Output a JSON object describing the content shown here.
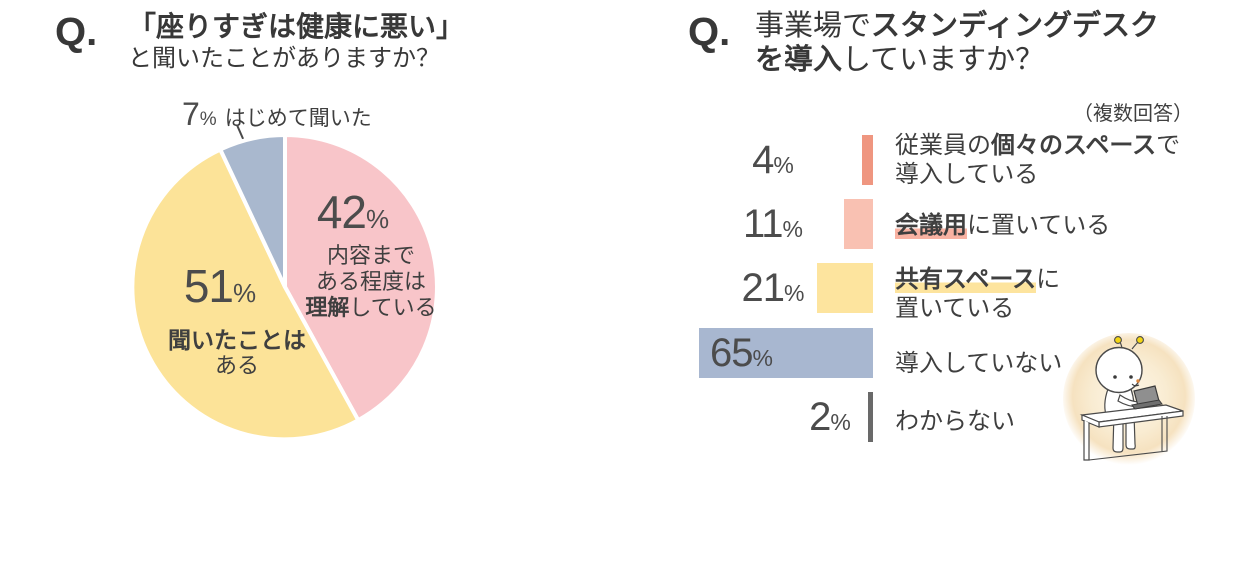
{
  "pct": "%",
  "colors": {
    "text_dark": "#383838",
    "text_label": "#3f3f3f",
    "number_gray": "#4c4c4c",
    "pie_pink": "#f8c5c9",
    "pie_yellow": "#fce398",
    "pie_blue": "#a9b8ce",
    "bar_salmon": "#ef9680",
    "bar_pink": "#f9c1b2",
    "bar_yellow": "#fde49e",
    "bar_blue": "#a8b7d0",
    "bar_darkgray": "#696969",
    "highlight_pink": "#f9b2a2",
    "highlight_yellow": "#fde49e",
    "white_dash": "#ffffff"
  },
  "icons": {
    "mascot": "standing-desk-character"
  },
  "left": {
    "q_mark": "Q.",
    "title_line1": "「座りすぎは健康に悪い」",
    "title_line2": "と聞いたことがありますか？",
    "callout_label": "はじめて聞いた",
    "slice_pink_desc": [
      [
        {
          "t": "内容まで"
        }
      ],
      [
        {
          "t": "ある程度は"
        }
      ],
      [
        {
          "t": "理解",
          "b": true
        },
        {
          "t": "している"
        }
      ]
    ],
    "slice_yellow_desc_bold": "聞いたことは",
    "slice_yellow_desc_rest": "ある"
  },
  "right": {
    "q_mark": "Q.",
    "title_line1": [
      {
        "t": "事業場で"
      },
      {
        "t": "スタンディングデスク",
        "b": true
      }
    ],
    "title_line2": [
      {
        "t": "を導入",
        "b": true
      },
      {
        "t": "していますか？"
      }
    ],
    "note": "（複数回答）",
    "rows": [
      {
        "label_lines": [
          [
            {
              "t": "従業員の"
            },
            {
              "t": "個々のスペース",
              "b": true
            },
            {
              "t": "で"
            }
          ],
          [
            {
              "t": "導入している"
            }
          ]
        ]
      },
      {
        "label_lines": [
          [
            {
              "t": "会議用",
              "b": true,
              "hl": "pink"
            },
            {
              "t": "に置いている"
            }
          ]
        ]
      },
      {
        "label_lines": [
          [
            {
              "t": "共有スペース",
              "b": true,
              "hl": "yellow"
            },
            {
              "t": "に"
            }
          ],
          [
            {
              "t": "置いている"
            }
          ]
        ]
      },
      {
        "label_lines": [
          [
            {
              "t": "導入していない"
            }
          ]
        ]
      },
      {
        "label_lines": [
          [
            {
              "t": "わからない"
            }
          ]
        ]
      }
    ]
  },
  "chart_data": [
    {
      "type": "pie",
      "title": "「座りすぎは健康に悪い」と聞いたことがありますか？",
      "labels": [
        "内容まである程度は理解している",
        "聞いたことはある",
        "はじめて聞いた"
      ],
      "values": [
        42,
        51,
        7
      ],
      "unit": "%",
      "colors": [
        "#f8c5c9",
        "#fce398",
        "#a9b8ce"
      ],
      "start_angle": "12-oclock",
      "direction": "clockwise",
      "slice_border": "#ffffff"
    },
    {
      "type": "bar",
      "orientation": "horizontal-right-aligned",
      "title": "事業場でスタンディングデスクを導入していますか？",
      "note": "（複数回答）",
      "categories": [
        "従業員の個々のスペースで導入している",
        "会議用に置いている",
        "共有スペースに置いている",
        "導入していない",
        "わからない"
      ],
      "values": [
        4,
        11,
        21,
        65,
        2
      ],
      "unit": "%",
      "xlim": [
        0,
        65
      ],
      "colors": [
        "#ef9680",
        "#f9c1b2",
        "#fde49e",
        "#a8b7d0",
        "#696969"
      ]
    }
  ]
}
